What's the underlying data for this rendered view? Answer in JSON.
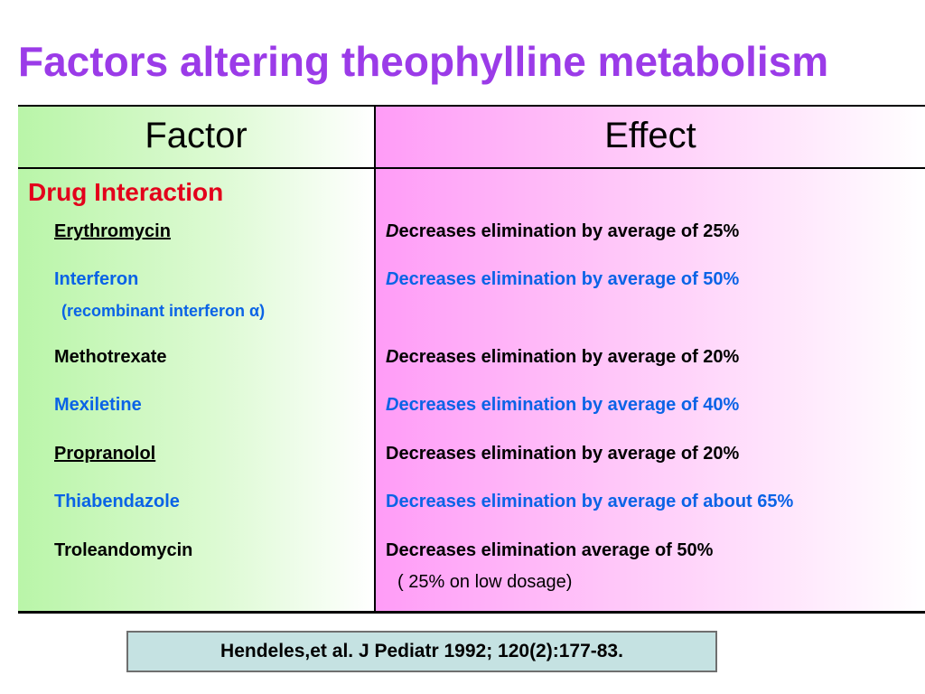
{
  "title": "Factors altering theophylline metabolism",
  "table": {
    "headers": {
      "factor": "Factor",
      "effect": "Effect"
    },
    "section": "Drug Interaction",
    "rows": [
      {
        "factor": "Erythromycin",
        "effect_initial": "D",
        "effect_rest": "ecreases elimination by average of 25%"
      },
      {
        "factor": "Interferon",
        "factor_note": "(recombinant interferon α)",
        "effect_initial": "D",
        "effect_rest": "ecreases elimination by average of 50%"
      },
      {
        "factor": "Methotrexate",
        "effect_initial": "D",
        "effect_rest": "ecreases elimination by average of 20%"
      },
      {
        "factor": "Mexiletine",
        "effect_initial": "D",
        "effect_rest": "ecreases elimination by average of 40%"
      },
      {
        "factor": "Propranolol",
        "effect": "Decreases elimination by average of 20%"
      },
      {
        "factor": "Thiabendazole",
        "effect": "Decreases elimination by average of about 65%"
      },
      {
        "factor": "Troleandomycin",
        "effect": "Decreases elimination  average of 50%",
        "effect_note": "( 25% on low dosage)"
      }
    ]
  },
  "citation": "Hendeles,et al. J Pediatr 1992; 120(2):177-83.",
  "colors": {
    "title": "#9b3be8",
    "section": "#e3001b",
    "blue_text": "#0a63e6",
    "left_column": "#b9f5a8",
    "right_column": "#ff9cf7",
    "citation_bg": "#c5e2e2"
  }
}
